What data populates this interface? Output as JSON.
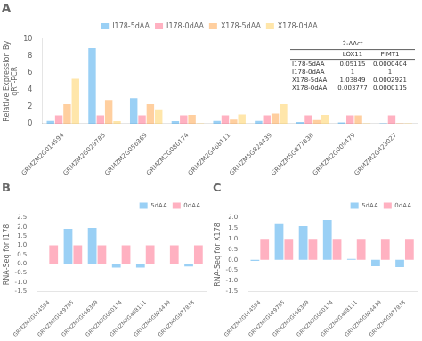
{
  "chart_data": [
    {
      "type": "bar",
      "title": "A",
      "ylabel": "Relative Expression By\nqRT-PCR",
      "categories": [
        "GRMZM2G014594",
        "GRMZM2G029785",
        "GRMZM2G056369",
        "GRMZM2G080174",
        "GRMZM2G468111",
        "GRMZM5G824439",
        "GRMZM5G877838",
        "GRMZM2G009479",
        "GRMZM2G423027"
      ],
      "series": [
        {
          "name": "I178-5dAA",
          "values": [
            0.35,
            8.9,
            3.0,
            0.3,
            0.35,
            0.35,
            0.2,
            0.15,
            0.05
          ]
        },
        {
          "name": "I178-0dAA",
          "values": [
            1.0,
            1.0,
            1.0,
            1.0,
            1.0,
            1.0,
            1.0,
            1.0,
            1.0
          ]
        },
        {
          "name": "X178-5dAA",
          "values": [
            2.3,
            2.8,
            2.3,
            1.05,
            0.5,
            1.2,
            0.45,
            1.0,
            0.05
          ]
        },
        {
          "name": "X178-0dAA",
          "values": [
            5.3,
            0.3,
            1.7,
            0.05,
            1.1,
            2.3,
            1.05,
            0.05,
            0.05
          ]
        }
      ],
      "ylim": [
        0,
        10
      ],
      "yticks": [
        0,
        2,
        4,
        6,
        8,
        10
      ],
      "grid": false,
      "legend": "upper center",
      "table": {
        "title": "2-ΔΔct",
        "cols": [
          "LOX11",
          "PIMT1"
        ],
        "rows": [
          "I178-5dAA",
          "I178-0dAA",
          "X178-5dAA",
          "X178-0dAA"
        ],
        "data": [
          [
            "0.05115",
            "0.0000404"
          ],
          [
            "1",
            "1"
          ],
          [
            "1.03849",
            "0.0002921"
          ],
          [
            "0.003777",
            "0.0000115"
          ]
        ]
      }
    },
    {
      "type": "bar",
      "title": "B",
      "ylabel": "RNA-Seq for I178",
      "categories": [
        "GRMZM2G014594",
        "GRMZM2G029785",
        "GRMZM2G056369",
        "GRMZM2G080174",
        "GRMZM2G468111",
        "GRMZM5G824439",
        "GRMZM5G877838"
      ],
      "series": [
        {
          "name": "5dAA",
          "values": [
            0.0,
            1.9,
            1.95,
            -0.2,
            -0.2,
            0.0,
            -0.15
          ]
        },
        {
          "name": "0dAA",
          "values": [
            1.0,
            1.0,
            1.0,
            1.0,
            1.0,
            1.0,
            1.0
          ]
        }
      ],
      "ylim": [
        -1.5,
        2.5
      ],
      "yticks": [
        -1.5,
        {
          "value": -1,
          "label": "-1.0"
        },
        -0.5,
        {
          "value": 0,
          "label": "0.0"
        },
        0.5,
        {
          "value": 1,
          "label": "1.0"
        },
        1.5,
        {
          "value": 2,
          "label": "2.0"
        },
        2.5
      ],
      "grid": false,
      "legend": "upper right"
    },
    {
      "type": "bar",
      "title": "C",
      "ylabel": "RNA-Seq for X178",
      "categories": [
        "GRMZM2G014594",
        "GRMZM2G029785",
        "GRMZM2G056369",
        "GRMZM2G080174",
        "GRMZM2G468111",
        "GRMZM5G824439",
        "GRMZM5G877838"
      ],
      "series": [
        {
          "name": "5dAA",
          "values": [
            -0.05,
            1.7,
            1.6,
            1.9,
            0.05,
            -0.3,
            -0.35
          ]
        },
        {
          "name": "0dAA",
          "values": [
            1.0,
            1.0,
            1.0,
            1.0,
            1.0,
            1.0,
            1.0
          ]
        }
      ],
      "ylim": [
        -1.5,
        2.0
      ],
      "yticks": [
        -1.5,
        {
          "value": -1,
          "label": "-1.0"
        },
        -0.5,
        {
          "value": 0,
          "label": "0.0"
        },
        0.5,
        {
          "value": 1,
          "label": "1.0"
        },
        1.5,
        {
          "value": 2,
          "label": "2.0"
        }
      ],
      "grid": false,
      "legend": "upper right"
    }
  ]
}
